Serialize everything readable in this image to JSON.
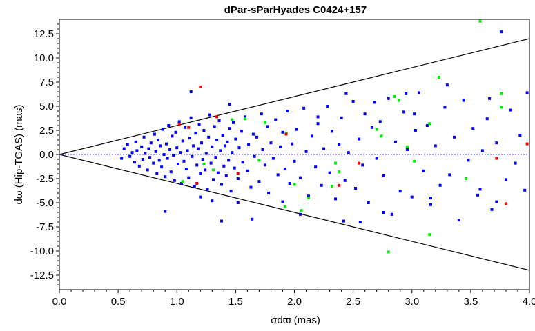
{
  "chart_data": {
    "type": "scatter",
    "title": "dPar-sParHyades  C0424+157",
    "xlabel": "σdϖ (mas)",
    "ylabel": "dϖ (Hip-TGAS) (mas)",
    "xlim": [
      0.0,
      4.0
    ],
    "ylim": [
      -14.0,
      14.0
    ],
    "x_ticks": [
      "0.0",
      "0.5",
      "1.0",
      "1.5",
      "2.0",
      "2.5",
      "3.0",
      "3.5",
      "4.0"
    ],
    "y_ticks": [
      "12.5",
      "10.0",
      "7.5",
      "5.0",
      "2.5",
      "0.0",
      "-2.5",
      "-5.0",
      "-7.5",
      "-10.0",
      "-12.5"
    ],
    "grid": false,
    "reference_lines": [
      {
        "type": "line",
        "x": [
          0.0,
          4.0
        ],
        "y": [
          0.0,
          12.0
        ],
        "color": "#000000"
      },
      {
        "type": "line",
        "x": [
          0.0,
          4.0
        ],
        "y": [
          0.0,
          -12.0
        ],
        "color": "#000000"
      },
      {
        "type": "dashed",
        "y": 0.0,
        "color": "#4040ff"
      }
    ],
    "series": [
      {
        "color": "#0000ff",
        "points": [
          [
            0.53,
            -0.4
          ],
          [
            0.55,
            0.6
          ],
          [
            0.58,
            1.0
          ],
          [
            0.6,
            -0.2
          ],
          [
            0.62,
            0.2
          ],
          [
            0.64,
            -0.8
          ],
          [
            0.65,
            1.3
          ],
          [
            0.66,
            0.4
          ],
          [
            0.68,
            -1.2
          ],
          [
            0.7,
            0.8
          ],
          [
            0.71,
            -0.5
          ],
          [
            0.72,
            1.8
          ],
          [
            0.73,
            0.1
          ],
          [
            0.75,
            -1.6
          ],
          [
            0.76,
            0.6
          ],
          [
            0.77,
            -0.3
          ],
          [
            0.78,
            1.2
          ],
          [
            0.8,
            -0.9
          ],
          [
            0.81,
            2.1
          ],
          [
            0.82,
            0.3
          ],
          [
            0.83,
            -2.0
          ],
          [
            0.84,
            1.5
          ],
          [
            0.85,
            -0.6
          ],
          [
            0.86,
            0.9
          ],
          [
            0.87,
            -1.3
          ],
          [
            0.88,
            2.6
          ],
          [
            0.89,
            0.0
          ],
          [
            0.9,
            -2.3
          ],
          [
            0.91,
            1.1
          ],
          [
            0.92,
            -0.4
          ],
          [
            0.93,
            3.0
          ],
          [
            0.94,
            0.5
          ],
          [
            0.95,
            -1.8
          ],
          [
            0.96,
            1.9
          ],
          [
            0.97,
            -0.1
          ],
          [
            0.98,
            -2.7
          ],
          [
            0.99,
            2.3
          ],
          [
            1.0,
            0.7
          ],
          [
            1.01,
            -1.0
          ],
          [
            1.02,
            3.4
          ],
          [
            1.03,
            0.2
          ],
          [
            1.04,
            -3.0
          ],
          [
            1.05,
            1.4
          ],
          [
            1.06,
            -0.7
          ],
          [
            1.07,
            2.8
          ],
          [
            1.08,
            -1.5
          ],
          [
            1.09,
            0.4
          ],
          [
            1.1,
            -2.4
          ],
          [
            1.11,
            1.7
          ],
          [
            1.12,
            3.8
          ],
          [
            1.13,
            -0.2
          ],
          [
            1.14,
            0.9
          ],
          [
            1.15,
            -3.3
          ],
          [
            1.16,
            2.2
          ],
          [
            1.17,
            -1.1
          ],
          [
            1.18,
            0.6
          ],
          [
            1.19,
            3.1
          ],
          [
            1.2,
            -2.0
          ],
          [
            1.21,
            1.2
          ],
          [
            1.22,
            -0.5
          ],
          [
            1.23,
            2.5
          ],
          [
            1.24,
            -1.6
          ],
          [
            1.25,
            0.1
          ],
          [
            1.26,
            -3.6
          ],
          [
            1.27,
            1.8
          ],
          [
            1.28,
            4.1
          ],
          [
            1.29,
            -0.9
          ],
          [
            1.3,
            0.8
          ],
          [
            1.31,
            -2.6
          ],
          [
            1.32,
            2.9
          ],
          [
            1.33,
            -0.3
          ],
          [
            1.34,
            1.5
          ],
          [
            1.35,
            -1.9
          ],
          [
            1.36,
            3.5
          ],
          [
            1.37,
            0.4
          ],
          [
            1.38,
            -3.1
          ],
          [
            1.39,
            2.0
          ],
          [
            1.4,
            -1.2
          ],
          [
            1.41,
            0.9
          ],
          [
            1.42,
            -2.2
          ],
          [
            1.43,
            1.3
          ],
          [
            1.44,
            -0.6
          ],
          [
            1.45,
            2.7
          ],
          [
            1.46,
            -3.8
          ],
          [
            1.47,
            0.2
          ],
          [
            1.48,
            3.3
          ],
          [
            1.49,
            -1.4
          ],
          [
            1.5,
            1.6
          ],
          [
            1.52,
            -2.5
          ],
          [
            1.53,
            0.7
          ],
          [
            1.55,
            2.4
          ],
          [
            1.56,
            -0.8
          ],
          [
            1.58,
            3.9
          ],
          [
            1.6,
            -1.7
          ],
          [
            1.61,
            1.0
          ],
          [
            1.63,
            -3.4
          ],
          [
            1.65,
            2.1
          ],
          [
            1.66,
            -0.2
          ],
          [
            1.68,
            1.8
          ],
          [
            1.7,
            -2.8
          ],
          [
            1.72,
            4.2
          ],
          [
            1.73,
            0.5
          ],
          [
            1.75,
            -1.1
          ],
          [
            1.77,
            2.9
          ],
          [
            1.78,
            -4.0
          ],
          [
            1.8,
            1.2
          ],
          [
            1.82,
            -0.4
          ],
          [
            1.84,
            3.6
          ],
          [
            1.86,
            -2.1
          ],
          [
            1.88,
            0.8
          ],
          [
            1.9,
            2.3
          ],
          [
            1.92,
            -1.5
          ],
          [
            1.94,
            4.5
          ],
          [
            1.96,
            -3.0
          ],
          [
            1.98,
            1.1
          ],
          [
            2.0,
            -0.7
          ],
          [
            2.02,
            2.6
          ],
          [
            2.05,
            -2.4
          ],
          [
            2.08,
            4.8
          ],
          [
            2.1,
            0.3
          ],
          [
            2.12,
            -4.3
          ],
          [
            2.15,
            1.9
          ],
          [
            2.18,
            -1.3
          ],
          [
            2.2,
            3.2
          ],
          [
            2.23,
            -3.2
          ],
          [
            2.25,
            0.6
          ],
          [
            2.28,
            5.0
          ],
          [
            2.3,
            -1.9
          ],
          [
            2.32,
            2.4
          ],
          [
            2.35,
            -4.6
          ],
          [
            2.38,
            1.0
          ],
          [
            2.4,
            3.8
          ],
          [
            2.43,
            -2.7
          ],
          [
            2.46,
            0.2
          ],
          [
            2.5,
            5.5
          ],
          [
            2.52,
            -3.5
          ],
          [
            2.55,
            1.6
          ],
          [
            2.58,
            -1.1
          ],
          [
            2.6,
            4.2
          ],
          [
            2.63,
            -5.0
          ],
          [
            2.66,
            2.8
          ],
          [
            2.7,
            -0.4
          ],
          [
            2.73,
            3.4
          ],
          [
            2.76,
            -2.2
          ],
          [
            2.8,
            5.8
          ],
          [
            2.83,
            -6.2
          ],
          [
            2.86,
            1.3
          ],
          [
            2.9,
            -3.8
          ],
          [
            2.93,
            4.4
          ],
          [
            2.96,
            0.5
          ],
          [
            3.0,
            -4.4
          ],
          [
            3.03,
            2.5
          ],
          [
            3.06,
            6.4
          ],
          [
            3.1,
            -1.7
          ],
          [
            3.13,
            3.0
          ],
          [
            3.16,
            -5.2
          ],
          [
            3.2,
            0.9
          ],
          [
            3.24,
            -3.2
          ],
          [
            3.28,
            4.9
          ],
          [
            3.32,
            -2.1
          ],
          [
            3.36,
            1.8
          ],
          [
            3.4,
            -6.8
          ],
          [
            3.44,
            5.6
          ],
          [
            3.48,
            -0.6
          ],
          [
            3.52,
            2.7
          ],
          [
            3.56,
            -4.2
          ],
          [
            3.6,
            0.4
          ],
          [
            3.64,
            3.7
          ],
          [
            3.68,
            -5.7
          ],
          [
            3.72,
            1.2
          ],
          [
            3.76,
            12.7
          ],
          [
            3.8,
            -2.6
          ],
          [
            3.84,
            4.6
          ],
          [
            3.88,
            -0.9
          ],
          [
            3.92,
            2.0
          ],
          [
            3.96,
            -3.7
          ],
          [
            3.98,
            6.4
          ],
          [
            1.12,
            6.5
          ],
          [
            1.45,
            5.2
          ],
          [
            1.3,
            -4.8
          ],
          [
            1.38,
            -6.9
          ],
          [
            1.64,
            -6.7
          ],
          [
            0.9,
            -5.9
          ],
          [
            1.2,
            -4.4
          ],
          [
            2.05,
            -6.2
          ],
          [
            2.42,
            -6.9
          ],
          [
            3.16,
            -4.5
          ],
          [
            3.72,
            -4.9
          ],
          [
            3.58,
            -3.6
          ],
          [
            3.02,
            4.2
          ],
          [
            2.68,
            5.4
          ],
          [
            2.95,
            6.3
          ],
          [
            3.3,
            7.2
          ],
          [
            3.66,
            5.8
          ],
          [
            2.44,
            6.3
          ],
          [
            2.2,
            3.9
          ],
          [
            1.52,
            -5.0
          ],
          [
            1.9,
            -4.9
          ],
          [
            2.56,
            -7.0
          ],
          [
            2.76,
            -6.0
          ]
        ]
      },
      {
        "color": "#00ee00",
        "points": [
          [
            3.58,
            13.8
          ],
          [
            3.23,
            8.0
          ],
          [
            3.76,
            6.3
          ],
          [
            2.85,
            6.0
          ],
          [
            2.89,
            5.6
          ],
          [
            3.76,
            4.9
          ],
          [
            3.15,
            3.2
          ],
          [
            2.7,
            2.6
          ],
          [
            2.74,
            1.9
          ],
          [
            1.75,
            3.3
          ],
          [
            1.58,
            3.7
          ],
          [
            1.93,
            2.2
          ],
          [
            2.96,
            0.8
          ],
          [
            3.02,
            -0.7
          ],
          [
            2.35,
            -0.9
          ],
          [
            2.38,
            -1.8
          ],
          [
            2.32,
            -3.3
          ],
          [
            2.0,
            -3.1
          ],
          [
            1.92,
            -5.4
          ],
          [
            2.12,
            -4.5
          ],
          [
            2.06,
            -5.8
          ],
          [
            2.8,
            -10.1
          ],
          [
            3.15,
            -8.3
          ],
          [
            3.46,
            -2.5
          ],
          [
            1.47,
            3.6
          ],
          [
            1.23,
            -1.0
          ],
          [
            1.05,
            -2.8
          ],
          [
            1.31,
            -1.6
          ],
          [
            1.7,
            -0.6
          ]
        ]
      },
      {
        "color": "#ff0000",
        "points": [
          [
            1.2,
            7.0
          ],
          [
            1.1,
            2.8
          ],
          [
            1.02,
            3.1
          ],
          [
            1.34,
            3.9
          ],
          [
            1.17,
            -3.0
          ],
          [
            1.52,
            -2.0
          ],
          [
            1.93,
            2.1
          ],
          [
            2.38,
            -3.2
          ],
          [
            2.55,
            -0.9
          ],
          [
            3.72,
            -0.4
          ],
          [
            3.8,
            -5.1
          ],
          [
            3.98,
            1.1
          ]
        ]
      }
    ]
  }
}
